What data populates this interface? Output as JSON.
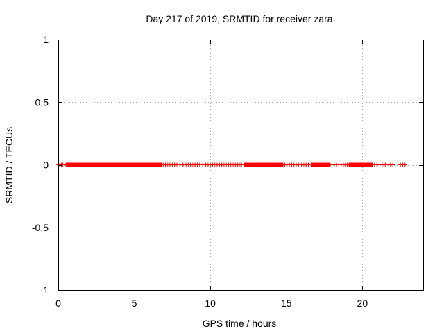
{
  "chart_data": {
    "type": "scatter",
    "title": "Day 217 of 2019, SRMTID for receiver zara",
    "xlabel": "GPS time / hours",
    "ylabel": "SRMTID / TECUs",
    "xlim": [
      0,
      24
    ],
    "ylim": [
      -1,
      1
    ],
    "xticks": [
      "0",
      "5",
      "10",
      "15",
      "20"
    ],
    "xtick_values": [
      0,
      5,
      10,
      15,
      20
    ],
    "yticks": [
      "1",
      "0.5",
      "0",
      "-0.5",
      "-1"
    ],
    "ytick_values": [
      1,
      0.5,
      0,
      -0.5,
      -1
    ],
    "grid": true,
    "marker": "+",
    "series_color": "#ff0000",
    "dense_intervals": [
      [
        0.5,
        6.8
      ],
      [
        12.2,
        14.8
      ],
      [
        16.6,
        17.9
      ],
      [
        19.1,
        20.7
      ]
    ],
    "x": [
      0.0,
      0.1,
      0.2,
      0.3,
      0.45,
      6.9,
      7.05,
      7.2,
      7.35,
      7.5,
      7.65,
      7.8,
      8.0,
      8.2,
      8.4,
      8.55,
      8.7,
      8.85,
      9.0,
      9.15,
      9.3,
      9.5,
      9.7,
      9.85,
      10.0,
      10.15,
      10.3,
      10.45,
      10.6,
      10.75,
      10.9,
      11.05,
      11.2,
      11.35,
      11.5,
      11.65,
      11.8,
      11.95,
      12.05,
      14.9,
      15.05,
      15.2,
      15.35,
      15.5,
      15.65,
      15.8,
      16.0,
      16.15,
      16.3,
      16.45,
      18.0,
      18.15,
      18.3,
      18.45,
      18.6,
      18.75,
      18.9,
      19.0,
      20.8,
      20.95,
      21.1,
      21.3,
      21.5,
      21.7,
      21.85,
      22.0,
      22.5,
      22.65,
      22.8
    ],
    "y_value": 0
  }
}
